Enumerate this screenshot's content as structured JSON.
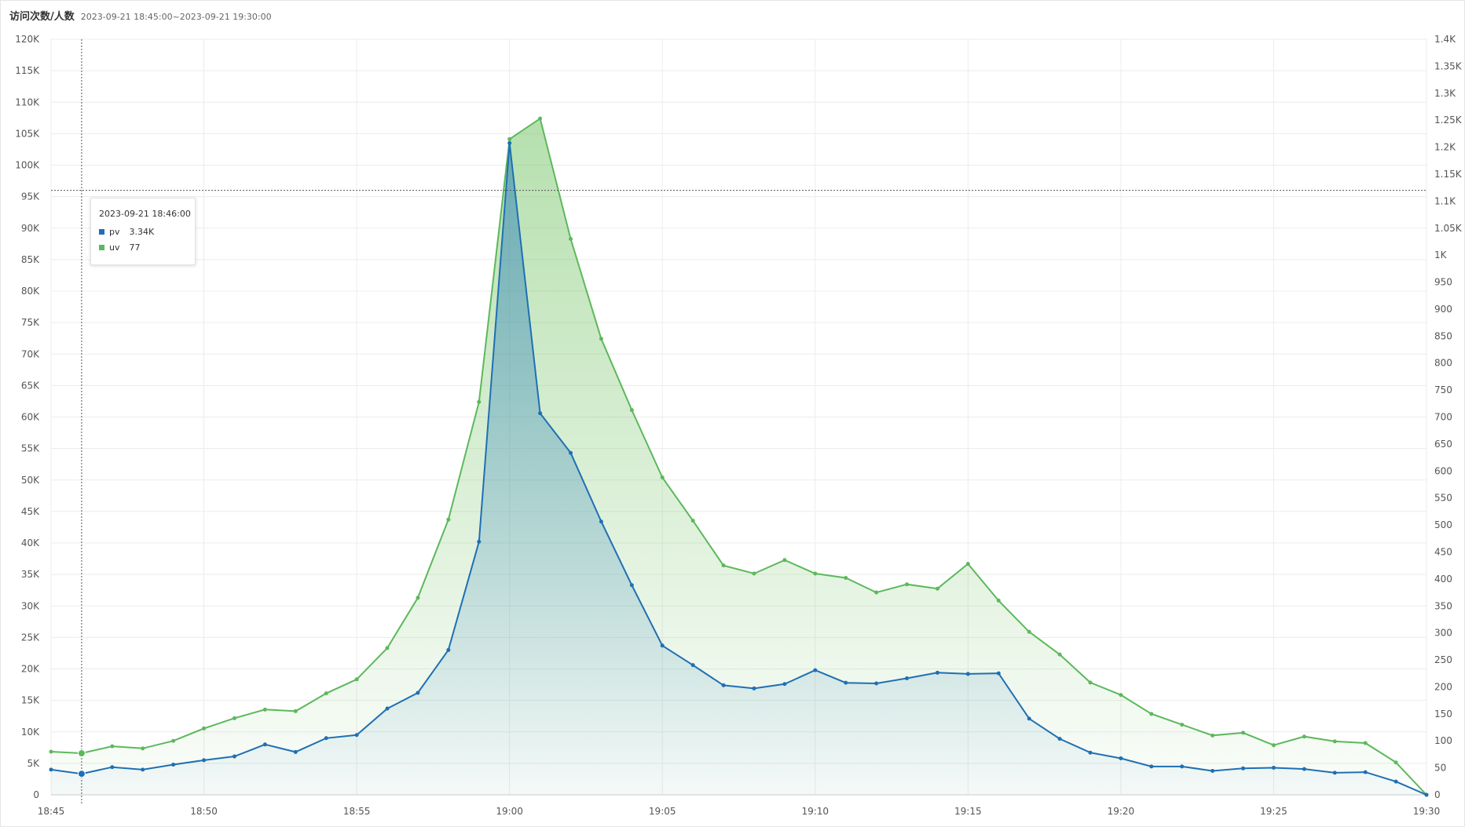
{
  "header": {
    "title": "访问次数/人数",
    "time_range": "2023-09-21 18:45:00~2023-09-21 19:30:00"
  },
  "tooltip": {
    "time": "2023-09-21 18:46:00",
    "rows": [
      {
        "name": "pv",
        "value": "3.34K",
        "color": "#1f6fb4"
      },
      {
        "name": "uv",
        "value": "77",
        "color": "#5cb85c"
      }
    ]
  },
  "chart_data": {
    "type": "area",
    "x": [
      "18:45",
      "18:46",
      "18:47",
      "18:48",
      "18:49",
      "18:50",
      "18:51",
      "18:52",
      "18:53",
      "18:54",
      "18:55",
      "18:56",
      "18:57",
      "18:58",
      "18:59",
      "19:00",
      "19:01",
      "19:02",
      "19:03",
      "19:04",
      "19:05",
      "19:06",
      "19:07",
      "19:08",
      "19:09",
      "19:10",
      "19:11",
      "19:12",
      "19:13",
      "19:14",
      "19:15",
      "19:16",
      "19:17",
      "19:18",
      "19:19",
      "19:20",
      "19:21",
      "19:22",
      "19:23",
      "19:24",
      "19:25",
      "19:26",
      "19:27",
      "19:28",
      "19:29",
      "19:30"
    ],
    "x_tick_labels": [
      "18:45",
      "18:50",
      "18:55",
      "19:00",
      "19:05",
      "19:10",
      "19:15",
      "19:20",
      "19:25",
      "19:30"
    ],
    "y_left": {
      "ylim": [
        0,
        120000
      ],
      "tick_labels": [
        "0",
        "5K",
        "10K",
        "15K",
        "20K",
        "25K",
        "30K",
        "35K",
        "40K",
        "45K",
        "50K",
        "55K",
        "60K",
        "65K",
        "70K",
        "75K",
        "80K",
        "85K",
        "90K",
        "95K",
        "100K",
        "105K",
        "110K",
        "115K",
        "120K"
      ]
    },
    "y_right": {
      "ylim": [
        0,
        1400
      ],
      "tick_labels": [
        "0",
        "50",
        "100",
        "150",
        "200",
        "250",
        "300",
        "350",
        "400",
        "450",
        "500",
        "550",
        "600",
        "650",
        "700",
        "750",
        "800",
        "850",
        "900",
        "950",
        "1K",
        "1.05K",
        "1.1K",
        "1.15K",
        "1.2K",
        "1.25K",
        "1.3K",
        "1.35K",
        "1.4K"
      ]
    },
    "series": [
      {
        "name": "pv",
        "axis": "left",
        "color": "#1f6fb4",
        "values": [
          4000,
          3340,
          4400,
          4000,
          4800,
          5500,
          6100,
          8000,
          6800,
          9000,
          9500,
          13700,
          16200,
          23000,
          40200,
          103500,
          60600,
          54300,
          43400,
          33300,
          23700,
          20600,
          17400,
          16900,
          17600,
          19800,
          17800,
          17700,
          18500,
          19400,
          19200,
          19300,
          12100,
          8900,
          6700,
          5800,
          4500,
          4500,
          3800,
          4200,
          4300,
          4100,
          3500,
          3600,
          2100,
          0
        ]
      },
      {
        "name": "uv",
        "axis": "right",
        "color": "#5cb85c",
        "values": [
          80,
          77,
          90,
          86,
          100,
          123,
          142,
          158,
          155,
          188,
          214,
          272,
          365,
          510,
          728,
          1215,
          1253,
          1030,
          845,
          713,
          588,
          508,
          425,
          410,
          435,
          410,
          402,
          375,
          390,
          382,
          428,
          360,
          302,
          260,
          208,
          185,
          150,
          130,
          110,
          115,
          92,
          108,
          99,
          96,
          60,
          0
        ]
      }
    ],
    "crosshair": {
      "x": "18:46",
      "y_label_value": 96000
    }
  }
}
